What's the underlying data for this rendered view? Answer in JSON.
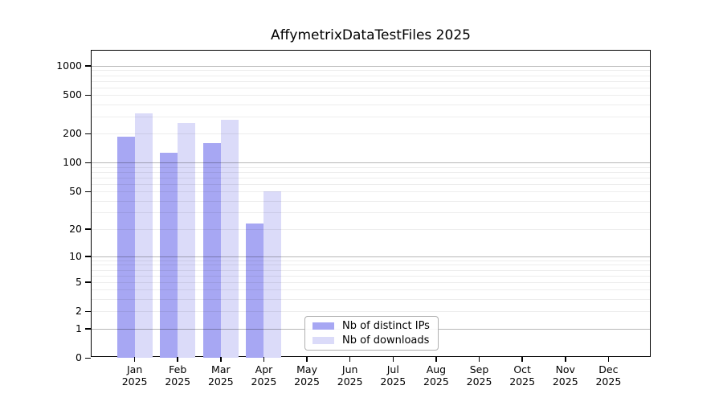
{
  "title": "AffymetrixDataTestFiles 2025",
  "chart_data": {
    "type": "bar",
    "title": "AffymetrixDataTestFiles 2025",
    "y_scale": "log1p",
    "grid": "on",
    "ylim": [
      0,
      1430
    ],
    "y_ticks": [
      0,
      1,
      2,
      5,
      10,
      20,
      50,
      100,
      200,
      500,
      1000
    ],
    "year": "2025",
    "categories": [
      "Jan",
      "Feb",
      "Mar",
      "Apr",
      "May",
      "Jun",
      "Jul",
      "Aug",
      "Sep",
      "Oct",
      "Nov",
      "Dec"
    ],
    "series": [
      {
        "name": "Nb of distinct IPs",
        "color": "#a7a7f3",
        "values": [
          187,
          128,
          159,
          23,
          null,
          null,
          null,
          null,
          null,
          null,
          null,
          null
        ]
      },
      {
        "name": "Nb of downloads",
        "color": "#dbdbf9",
        "values": [
          325,
          256,
          278,
          50,
          null,
          null,
          null,
          null,
          null,
          null,
          null,
          null
        ]
      }
    ],
    "legend_position": "lower center"
  }
}
